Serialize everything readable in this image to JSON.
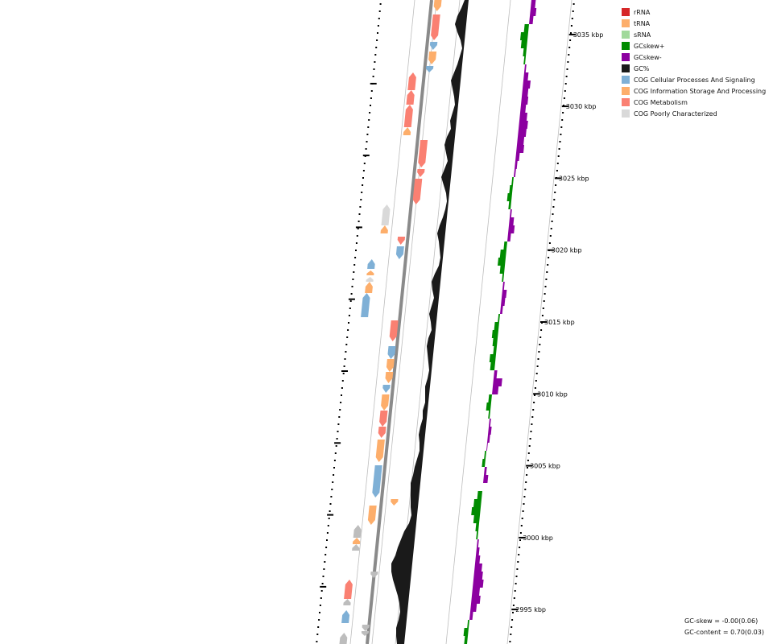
{
  "map": {
    "kbp_ticks": [
      {
        "label": "3035 kbp",
        "kbp": 3035
      },
      {
        "label": "3030 kbp",
        "kbp": 3030
      },
      {
        "label": "3025 kbp",
        "kbp": 3025
      },
      {
        "label": "3020 kbp",
        "kbp": 3020
      },
      {
        "label": "3015 kbp",
        "kbp": 3015
      },
      {
        "label": "3010 kbp",
        "kbp": 3010
      },
      {
        "label": "3005 kbp",
        "kbp": 3005
      },
      {
        "label": "3000 kbp",
        "kbp": 3000
      },
      {
        "label": "2995 kbp",
        "kbp": 2995
      }
    ]
  },
  "legend": {
    "items": [
      {
        "label": "rRNA",
        "color": "#d62728"
      },
      {
        "label": "tRNA",
        "color": "#fdae6b"
      },
      {
        "label": "sRNA",
        "color": "#a1d99b"
      },
      {
        "label": "GCskew+",
        "color": "#008c00"
      },
      {
        "label": "GCskew-",
        "color": "#8c00a0"
      },
      {
        "label": "GC%",
        "color": "#1a1a1a"
      },
      {
        "label": "COG Cellular Processes And Signaling",
        "color": "#7fb0d6"
      },
      {
        "label": "COG Information Storage And Processing",
        "color": "#fdae6b"
      },
      {
        "label": "COG Metabolism",
        "color": "#fa8072"
      },
      {
        "label": "COG Poorly Characterized",
        "color": "#d9d9d9"
      }
    ]
  },
  "stats": {
    "gc_skew": "GC-skew = -0.00(0.06)",
    "gc_content": "GC-content = 0.70(0.03)"
  }
}
